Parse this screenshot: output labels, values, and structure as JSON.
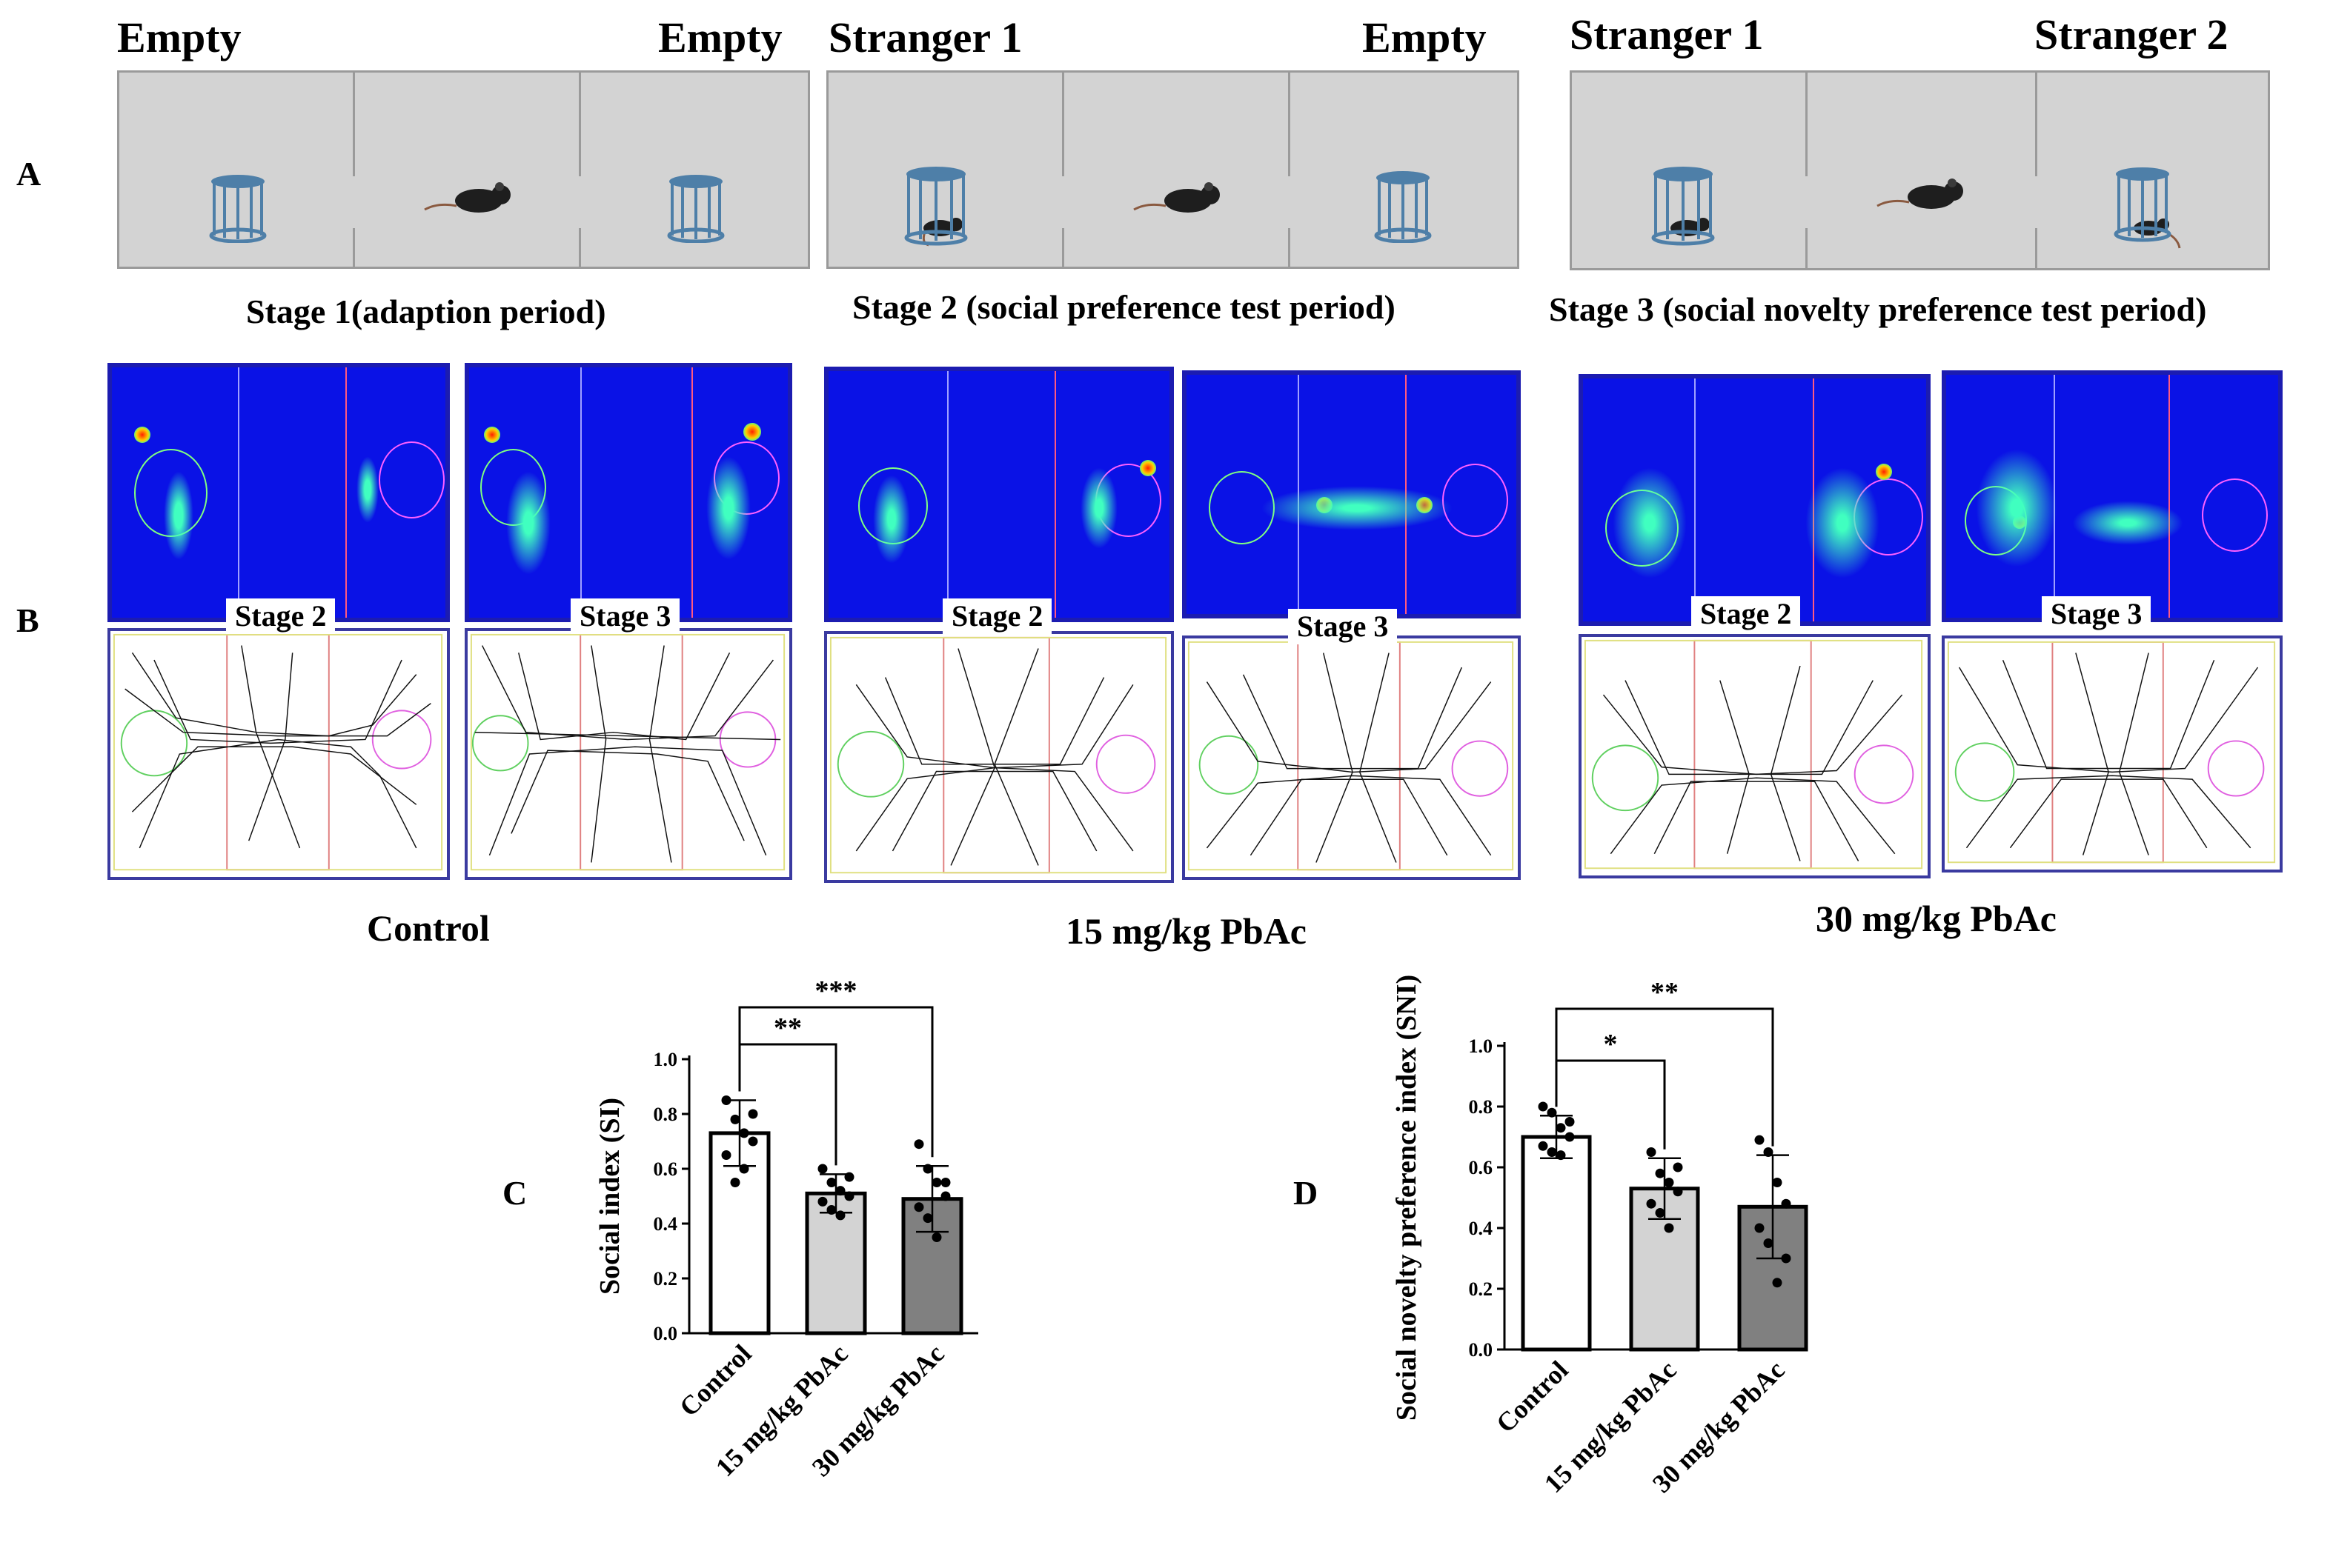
{
  "panelA": {
    "letter": "A",
    "arenas": [
      {
        "left_label": "Empty",
        "right_label": "Empty",
        "caption": "Stage 1(adaption period)"
      },
      {
        "left_label": "Stranger 1",
        "right_label": "Empty",
        "caption": "Stage 2 (social preference test period)"
      },
      {
        "left_label": "Stranger 1",
        "right_label": "Stranger 2",
        "caption": "Stage 3 (social novelty preference test period)"
      }
    ]
  },
  "panelB": {
    "letter": "B",
    "groups": [
      {
        "label": "Control",
        "tags": [
          "Stage 2",
          "Stage 3"
        ]
      },
      {
        "label": "15 mg/kg PbAc",
        "tags": [
          "Stage 2",
          "Stage 3"
        ]
      },
      {
        "label": "30 mg/kg PbAc",
        "tags": [
          "Stage 2",
          "Stage 3"
        ]
      }
    ]
  },
  "colors": {
    "bar_control": "#ffffff",
    "bar_15": "#d3d3d3",
    "bar_30": "#808080",
    "heatmap_bg": "#0a12e6",
    "arena_bg": "#d3d3d3"
  },
  "chart_data": [
    {
      "id": "C",
      "letter": "C",
      "type": "bar",
      "ylabel": "Social index (SI)",
      "ylim": [
        0,
        1.0
      ],
      "yticks": [
        "0.0",
        "0.2",
        "0.4",
        "0.6",
        "0.8",
        "1.0"
      ],
      "categories": [
        "Control",
        "15 mg/kg PbAc",
        "30 mg/kg PbAc"
      ],
      "values": [
        0.73,
        0.51,
        0.49
      ],
      "sd": [
        0.12,
        0.07,
        0.12
      ],
      "points": [
        [
          0.85,
          0.78,
          0.73,
          0.7,
          0.65,
          0.55,
          0.6,
          0.8
        ],
        [
          0.6,
          0.55,
          0.52,
          0.5,
          0.48,
          0.45,
          0.43,
          0.57
        ],
        [
          0.69,
          0.6,
          0.55,
          0.5,
          0.46,
          0.42,
          0.35,
          0.55
        ]
      ],
      "significance": [
        {
          "from": 0,
          "to": 1,
          "label": "**"
        },
        {
          "from": 0,
          "to": 2,
          "label": "***"
        }
      ]
    },
    {
      "id": "D",
      "letter": "D",
      "type": "bar",
      "ylabel": "Social novelty preference index (SNI)",
      "ylim": [
        0,
        1.0
      ],
      "yticks": [
        "0.0",
        "0.2",
        "0.4",
        "0.6",
        "0.8",
        "1.0"
      ],
      "categories": [
        "Control",
        "15 mg/kg PbAc",
        "30 mg/kg PbAc"
      ],
      "values": [
        0.7,
        0.53,
        0.47
      ],
      "sd": [
        0.07,
        0.1,
        0.17
      ],
      "points": [
        [
          0.8,
          0.78,
          0.73,
          0.7,
          0.67,
          0.65,
          0.64,
          0.75
        ],
        [
          0.65,
          0.58,
          0.55,
          0.52,
          0.48,
          0.45,
          0.4,
          0.6
        ],
        [
          0.69,
          0.65,
          0.55,
          0.48,
          0.4,
          0.35,
          0.22,
          0.3
        ]
      ],
      "significance": [
        {
          "from": 0,
          "to": 1,
          "label": "*"
        },
        {
          "from": 0,
          "to": 2,
          "label": "**"
        }
      ]
    }
  ]
}
